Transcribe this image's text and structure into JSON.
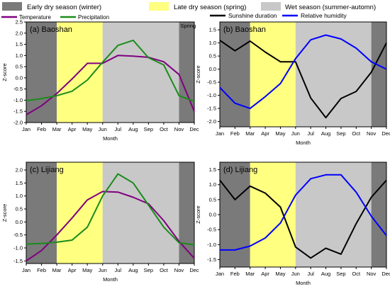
{
  "legend": {
    "seasons": [
      {
        "label": "Early dry season (winter)",
        "color": "#7a7a7a"
      },
      {
        "label": "Late dry season (spring)",
        "color": "#ffff80"
      },
      {
        "label": "Wet season (summer-automn)",
        "color": "#c8c8c8"
      }
    ],
    "series_top_left": [
      {
        "label": "Temperature",
        "color": "#800080"
      },
      {
        "label": "Precipitation",
        "color": "#1a8c1a"
      }
    ],
    "series_top_right": [
      {
        "label": "Sunshine duration",
        "color": "#000000"
      },
      {
        "label": "Relative humidity",
        "color": "#0000ff"
      }
    ]
  },
  "chart_data": [
    {
      "type": "line",
      "panel_label": "(a) Baoshan",
      "annotation": "Spring",
      "xlabel": "Month",
      "ylabel": "Z-score",
      "ylim": [
        -2.0,
        2.5
      ],
      "yticks": [
        "-2.0",
        "-1.5",
        "-1.0",
        "-0.5",
        "0.0",
        "0.5",
        "1.0",
        "1.5",
        "2.0",
        "2.5"
      ],
      "categories": [
        "Jan",
        "Feb",
        "Mar",
        "Apr",
        "May",
        "Jun",
        "Jul",
        "Aug",
        "Sep",
        "Oct",
        "Nov",
        "Dec"
      ],
      "series": [
        {
          "name": "Temperature",
          "values": [
            -1.65,
            -1.25,
            -0.7,
            -0.05,
            0.65,
            0.65,
            1.0,
            0.97,
            0.92,
            0.72,
            0.15,
            -1.5
          ]
        },
        {
          "name": "Precipitation",
          "values": [
            -1.02,
            -0.93,
            -0.8,
            -0.6,
            -0.1,
            0.7,
            1.45,
            1.68,
            0.9,
            0.58,
            -0.8,
            -1.05
          ]
        }
      ]
    },
    {
      "type": "line",
      "panel_label": "(b) Baoshan",
      "xlabel": "Month",
      "ylabel": "Z-score",
      "ylim": [
        -2.2,
        1.8
      ],
      "yticks": [
        "-2.0",
        "-1.5",
        "-1.0",
        "-0.5",
        "0.0",
        "0.5",
        "1.0",
        "1.5"
      ],
      "categories": [
        "Jan",
        "Feb",
        "Mar",
        "Apr",
        "May",
        "Jun",
        "Jul",
        "Aug",
        "Sep",
        "Oct",
        "Nov",
        "Dec"
      ],
      "series": [
        {
          "name": "Sunshine duration",
          "values": [
            1.1,
            0.7,
            1.07,
            0.65,
            0.28,
            0.28,
            -1.1,
            -1.85,
            -1.12,
            -0.85,
            -0.12,
            1.0
          ]
        },
        {
          "name": "Relative humidity",
          "values": [
            -0.7,
            -1.3,
            -1.5,
            -1.05,
            -0.55,
            0.4,
            1.12,
            1.3,
            1.15,
            0.8,
            0.28,
            0.0
          ]
        }
      ]
    },
    {
      "type": "line",
      "panel_label": "(c) Lijiang",
      "xlabel": "Month",
      "ylabel": "Z-score",
      "ylim": [
        -1.6,
        2.3
      ],
      "yticks": [
        "-1.5",
        "-1.0",
        "-0.5",
        "0.0",
        "0.5",
        "1.0",
        "1.5",
        "2.0"
      ],
      "categories": [
        "Jan",
        "Feb",
        "Mar",
        "Apr",
        "May",
        "Jun",
        "Jul",
        "Aug",
        "Sep",
        "Oct",
        "Nov",
        "Dec"
      ],
      "series": [
        {
          "name": "Temperature",
          "values": [
            -1.5,
            -1.1,
            -0.5,
            0.15,
            0.85,
            1.17,
            1.15,
            0.95,
            0.7,
            0.05,
            -0.75,
            -1.4
          ]
        },
        {
          "name": "Precipitation",
          "values": [
            -0.85,
            -0.83,
            -0.78,
            -0.7,
            -0.2,
            1.0,
            1.85,
            1.5,
            0.65,
            -0.2,
            -0.8,
            -0.88
          ]
        }
      ]
    },
    {
      "type": "line",
      "panel_label": "(d) Lijiang",
      "xlabel": "Month",
      "ylabel": "Z-score",
      "ylim": [
        -1.75,
        1.75
      ],
      "yticks": [
        "-1.5",
        "-1.0",
        "-0.5",
        "0.0",
        "0.5",
        "1.0",
        "1.5"
      ],
      "categories": [
        "Jan",
        "Feb",
        "Mar",
        "Apr",
        "May",
        "Jun",
        "Jul",
        "Aug",
        "Sep",
        "Oct",
        "Nov",
        "Dec"
      ],
      "series": [
        {
          "name": "Sunshine duration",
          "values": [
            1.15,
            0.5,
            0.95,
            0.72,
            0.25,
            -1.08,
            -1.45,
            -1.12,
            -1.32,
            -0.3,
            0.58,
            1.15
          ]
        },
        {
          "name": "Relative humidity",
          "values": [
            -1.18,
            -1.18,
            -1.05,
            -0.78,
            -0.28,
            0.65,
            1.2,
            1.33,
            1.33,
            0.75,
            -0.05,
            -0.7
          ]
        }
      ]
    }
  ]
}
